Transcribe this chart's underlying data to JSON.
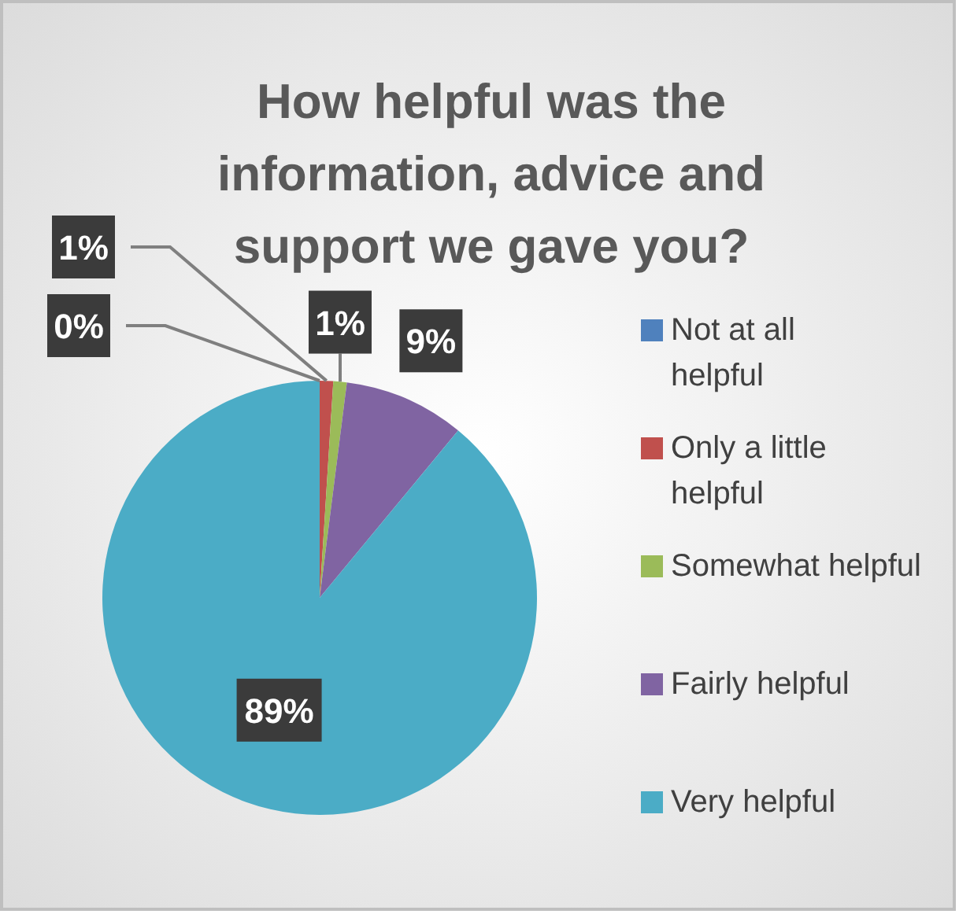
{
  "chart_data": {
    "type": "pie",
    "title": "How helpful was the information, advice and support we gave you?",
    "categories": [
      "Not at all helpful",
      "Only a little helpful",
      "Somewhat helpful",
      "Fairly helpful",
      "Very helpful"
    ],
    "values": [
      0,
      1,
      1,
      9,
      89
    ],
    "colors": [
      "#4f81bd",
      "#c0504d",
      "#9bbb59",
      "#8064a2",
      "#4bacc6"
    ],
    "value_labels": [
      "0%",
      "1%",
      "1%",
      "9%",
      "89%"
    ],
    "legend": "right"
  }
}
